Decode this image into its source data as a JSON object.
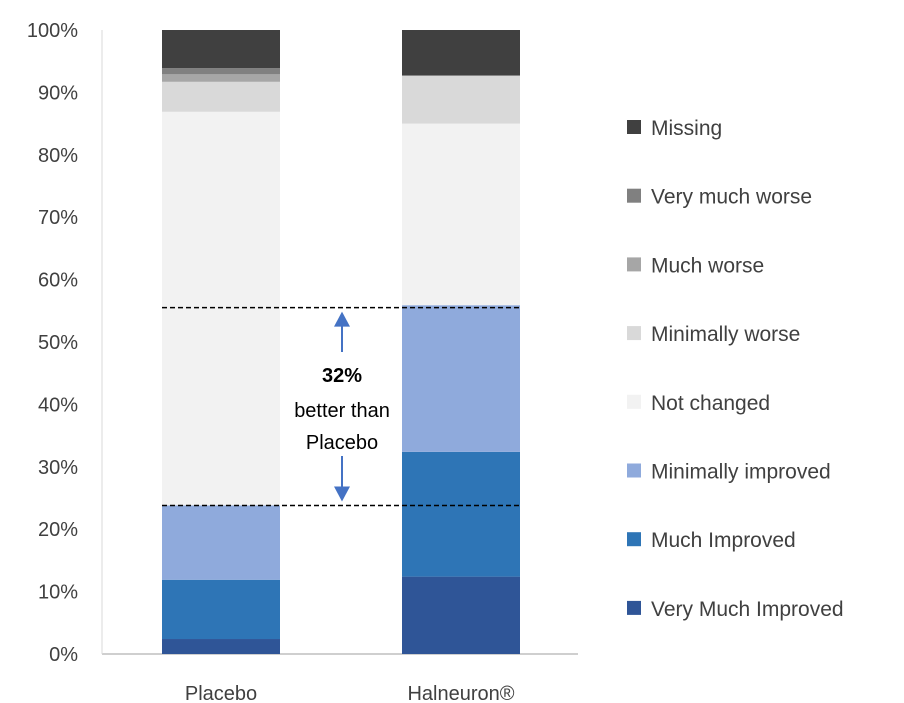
{
  "chart_data": {
    "type": "bar",
    "stacked": true,
    "categories": [
      "Placebo",
      "Halneuron®"
    ],
    "ylim": [
      0,
      100
    ],
    "yticks": [
      "0%",
      "10%",
      "20%",
      "30%",
      "40%",
      "50%",
      "60%",
      "70%",
      "80%",
      "90%",
      "100%"
    ],
    "grid": false,
    "legend_position": "right",
    "series": [
      {
        "name": "Very Much Improved",
        "color": "#2F5597",
        "values": [
          2.4,
          12.4
        ]
      },
      {
        "name": "Much Improved",
        "color": "#2E75B6",
        "values": [
          9.5,
          20.0
        ]
      },
      {
        "name": "Minimally improved",
        "color": "#8FAADC",
        "values": [
          11.9,
          23.5
        ]
      },
      {
        "name": "Not changed",
        "color": "#F2F2F2",
        "values": [
          63.1,
          29.1
        ]
      },
      {
        "name": "Minimally worse",
        "color": "#D9D9D9",
        "values": [
          4.8,
          7.7
        ]
      },
      {
        "name": "Much worse",
        "color": "#A6A6A6",
        "values": [
          1.2,
          0.0
        ]
      },
      {
        "name": "Very much worse",
        "color": "#808080",
        "values": [
          1.0,
          0.0
        ]
      },
      {
        "name": "Missing",
        "color": "#404040",
        "values": [
          6.1,
          7.3
        ]
      }
    ],
    "annotation": {
      "bold_text": "32%",
      "line1": "better than",
      "line2": "Placebo",
      "upper_level": 55.5,
      "lower_level": 23.8
    }
  }
}
